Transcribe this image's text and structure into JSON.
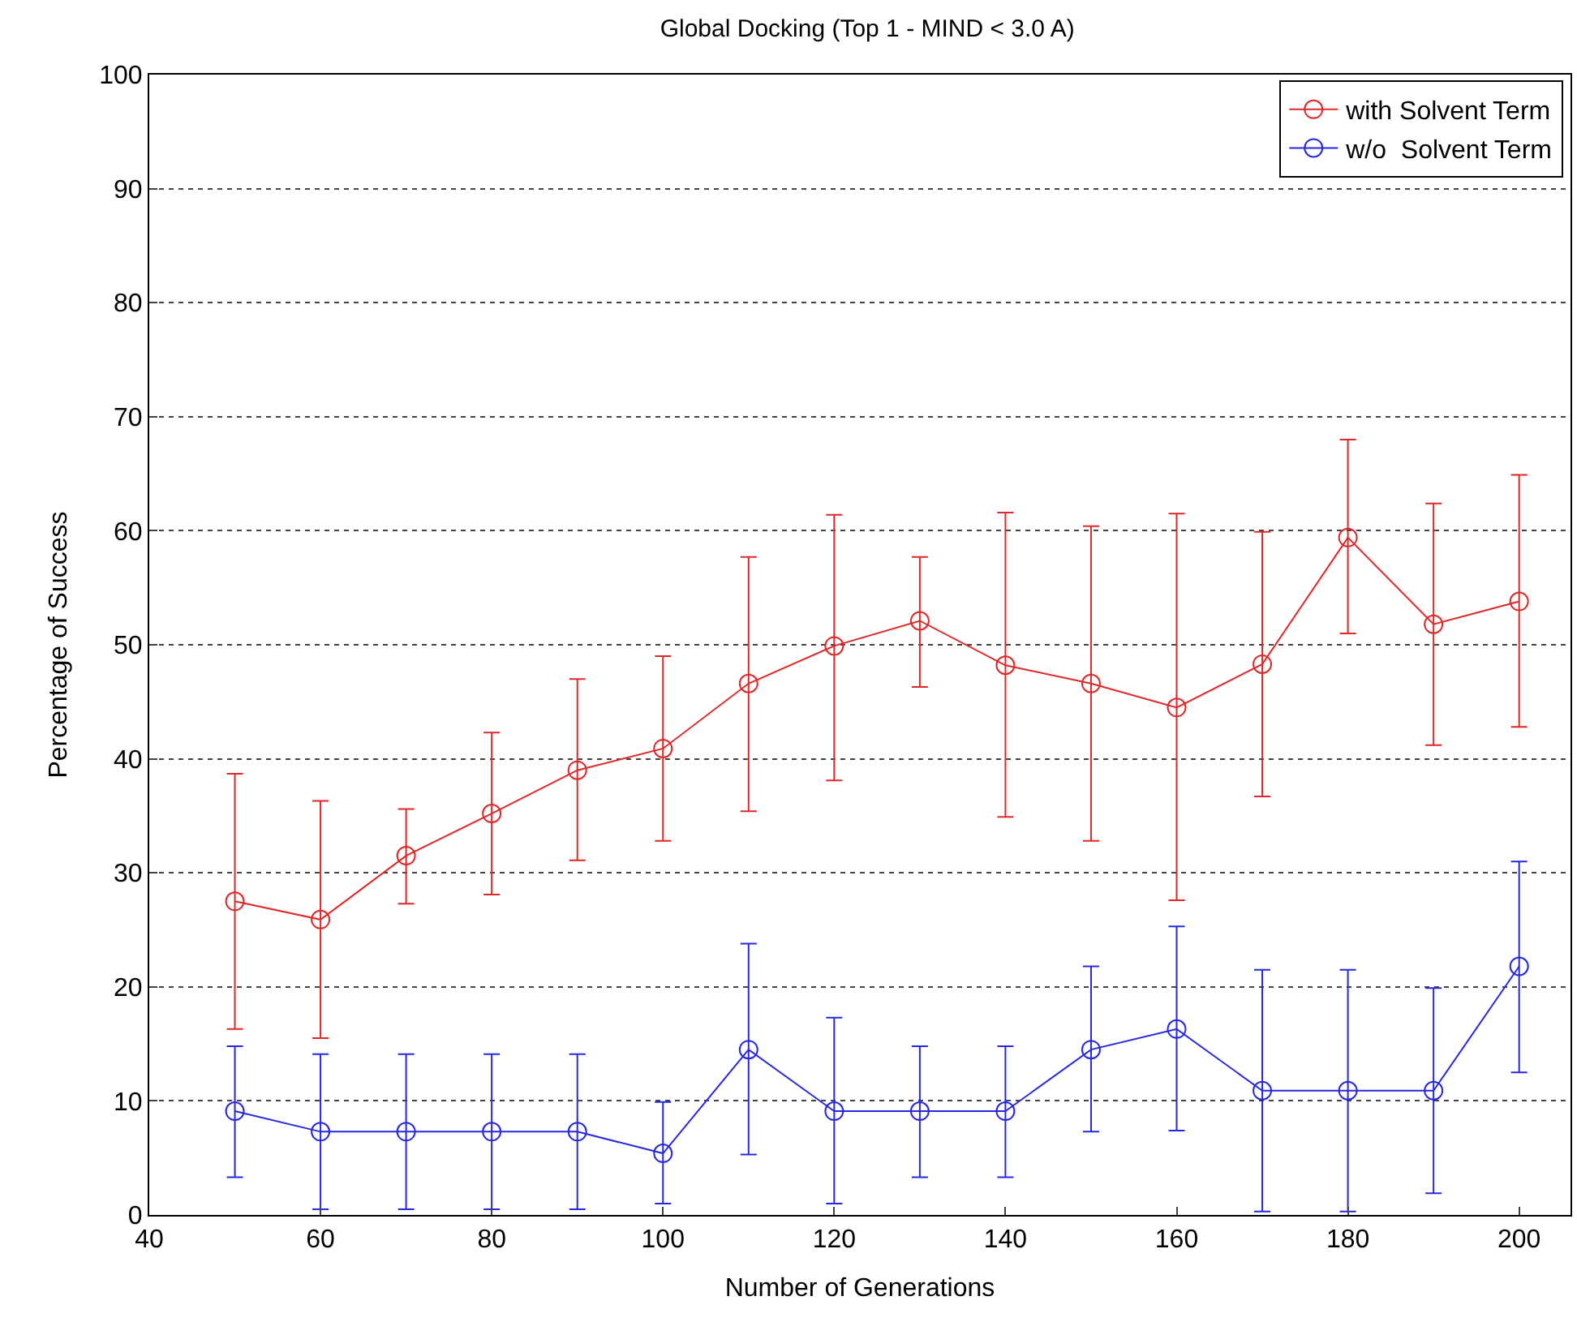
{
  "chart_data": {
    "type": "line",
    "title": "Global Docking (Top 1 - MIND < 3.0 A)",
    "xlabel": "Number of Generations",
    "ylabel": "Percentage of Success",
    "x": [
      50,
      60,
      70,
      80,
      90,
      100,
      110,
      120,
      130,
      140,
      150,
      160,
      170,
      180,
      190,
      200
    ],
    "series": [
      {
        "name": "with Solvent Term",
        "color": "#e02828",
        "values": [
          27.5,
          25.9,
          31.5,
          35.2,
          39.0,
          40.9,
          46.6,
          49.9,
          52.1,
          48.2,
          46.6,
          44.5,
          48.3,
          59.4,
          51.8,
          53.8
        ],
        "errors": [
          [
            16.3,
            38.7
          ],
          [
            15.5,
            36.3
          ],
          [
            27.3,
            35.6
          ],
          [
            28.1,
            42.3
          ],
          [
            31.1,
            47.0
          ],
          [
            32.8,
            49.0
          ],
          [
            35.4,
            57.7
          ],
          [
            38.1,
            61.4
          ],
          [
            46.3,
            57.7
          ],
          [
            34.9,
            61.6
          ],
          [
            32.8,
            60.4
          ],
          [
            27.6,
            61.5
          ],
          [
            36.7,
            59.9
          ],
          [
            51.0,
            68.0
          ],
          [
            41.2,
            62.4
          ],
          [
            42.8,
            64.9
          ]
        ]
      },
      {
        "name": "w/o  Solvent Term",
        "color": "#2828e0",
        "values": [
          9.1,
          7.3,
          7.3,
          7.3,
          7.3,
          5.4,
          14.5,
          9.1,
          9.1,
          9.1,
          14.5,
          16.3,
          10.9,
          10.9,
          10.9,
          21.8
        ],
        "errors": [
          [
            3.3,
            14.8
          ],
          [
            0.5,
            14.1
          ],
          [
            0.5,
            14.1
          ],
          [
            0.5,
            14.1
          ],
          [
            0.5,
            14.1
          ],
          [
            1.0,
            9.9
          ],
          [
            5.3,
            23.8
          ],
          [
            1.0,
            17.3
          ],
          [
            3.3,
            14.8
          ],
          [
            3.3,
            14.8
          ],
          [
            7.3,
            21.8
          ],
          [
            7.4,
            25.3
          ],
          [
            0.3,
            21.5
          ],
          [
            0.3,
            21.5
          ],
          [
            1.9,
            19.9
          ],
          [
            12.5,
            31.0
          ]
        ]
      }
    ],
    "xlim": [
      40,
      206
    ],
    "xticks": [
      40,
      60,
      80,
      100,
      120,
      140,
      160,
      180,
      200
    ],
    "ylim": [
      0,
      100
    ],
    "yticks": [
      0,
      10,
      20,
      30,
      40,
      50,
      60,
      70,
      80,
      90,
      100
    ],
    "grid": "y",
    "legend": "top right",
    "marker": "circle",
    "line_style": "solid"
  }
}
